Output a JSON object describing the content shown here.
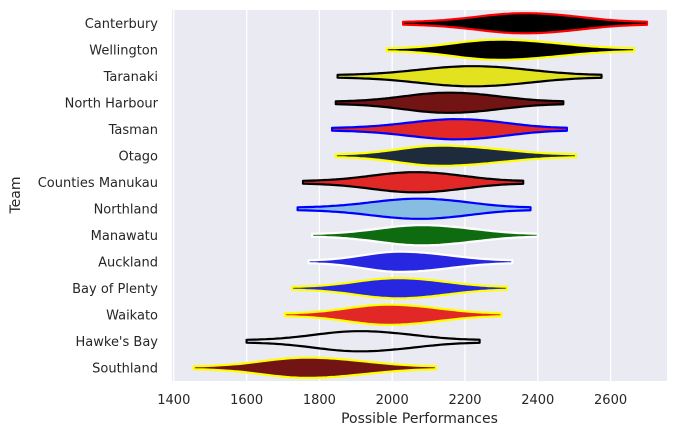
{
  "chart_data": {
    "type": "violin",
    "orientation": "horizontal",
    "xlabel": "Possible Performances",
    "ylabel": "Team",
    "xlim": [
      1395,
      2755
    ],
    "xticks": [
      1400,
      1600,
      1800,
      2000,
      2200,
      2400,
      2600
    ],
    "grid": true,
    "background": "#eaeaf2",
    "teams": [
      {
        "name": "Canterbury",
        "fill": "#000000",
        "edge": "#ff0000",
        "min": 2030,
        "max": 2700,
        "center": 2360,
        "width": 0.72
      },
      {
        "name": "Wellington",
        "fill": "#000000",
        "edge": "#ffff00",
        "min": 1985,
        "max": 2665,
        "center": 2285,
        "width": 0.72
      },
      {
        "name": "Taranaki",
        "fill": "#e2e21e",
        "edge": "#000000",
        "min": 1850,
        "max": 2575,
        "center": 2215,
        "width": 0.72
      },
      {
        "name": "North Harbour",
        "fill": "#731414",
        "edge": "#000000",
        "min": 1845,
        "max": 2470,
        "center": 2150,
        "width": 0.72
      },
      {
        "name": "Tasman",
        "fill": "#e22727",
        "edge": "#0000ff",
        "min": 1835,
        "max": 2480,
        "center": 2175,
        "width": 0.72
      },
      {
        "name": "Otago",
        "fill": "#1e2b3c",
        "edge": "#ffff00",
        "min": 1845,
        "max": 2505,
        "center": 2125,
        "width": 0.72
      },
      {
        "name": "Counties Manukau",
        "fill": "#e22727",
        "edge": "#000000",
        "min": 1755,
        "max": 2360,
        "center": 2060,
        "width": 0.72
      },
      {
        "name": "Northland",
        "fill": "#87bde2",
        "edge": "#0000ff",
        "min": 1740,
        "max": 2380,
        "center": 2070,
        "width": 0.72
      },
      {
        "name": "Manawatu",
        "fill": "#0f6b0f",
        "edge": "#ffffff",
        "min": 1780,
        "max": 2400,
        "center": 2075,
        "width": 0.72
      },
      {
        "name": "Auckland",
        "fill": "#2727e2",
        "edge": "#ffffff",
        "min": 1770,
        "max": 2330,
        "center": 2015,
        "width": 0.72
      },
      {
        "name": "Bay of Plenty",
        "fill": "#2727e2",
        "edge": "#ffff00",
        "min": 1725,
        "max": 2315,
        "center": 2010,
        "width": 0.72
      },
      {
        "name": "Waikato",
        "fill": "#e22727",
        "edge": "#ffff00",
        "min": 1705,
        "max": 2300,
        "center": 1985,
        "width": 0.72
      },
      {
        "name": "Hawke's Bay",
        "fill": "none",
        "edge": "#000000",
        "min": 1600,
        "max": 2240,
        "center": 1905,
        "width": 0.72
      },
      {
        "name": "Southland",
        "fill": "#731414",
        "edge": "#ffff00",
        "min": 1455,
        "max": 2120,
        "center": 1760,
        "width": 0.72
      }
    ]
  }
}
